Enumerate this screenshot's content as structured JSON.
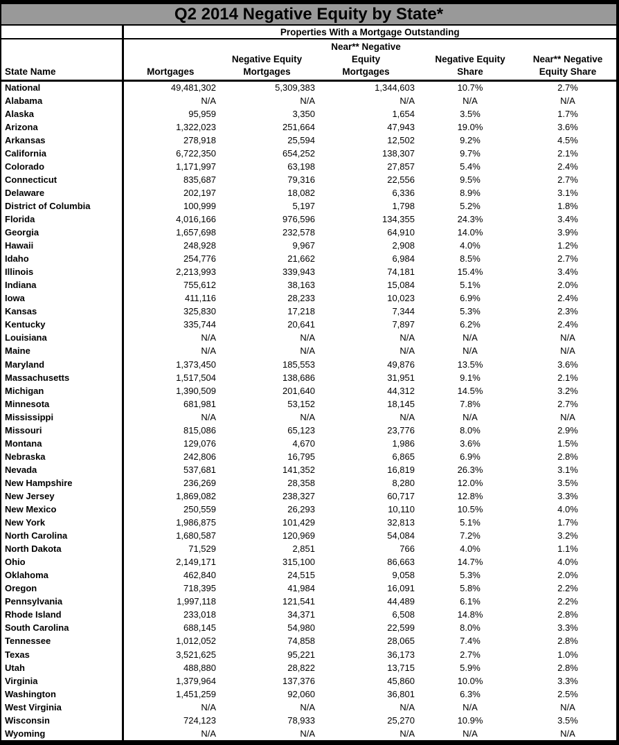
{
  "title": "Q2 2014 Negative Equity by State*",
  "colors": {
    "title_bar_bg": "#999999",
    "border": "#000000",
    "text": "#000000"
  },
  "table": {
    "group_header": "Properties With a Mortgage Outstanding",
    "columns": {
      "state": "State Name",
      "mortgages": "Mortgages",
      "neg_equity_l1": "Negative Equity",
      "neg_equity_l2": "Mortgages",
      "near_neg_l1": "Near** Negative",
      "near_neg_l2": "Equity",
      "near_neg_l3": "Mortgages",
      "neg_share_l1": "Negative Equity",
      "neg_share_l2": "Share",
      "near_share_l1": "Near** Negative",
      "near_share_l2": "Equity Share"
    },
    "rows": [
      [
        "National",
        "49,481,302",
        "5,309,383",
        "1,344,603",
        "10.7%",
        "2.7%"
      ],
      [
        "Alabama",
        "N/A",
        "N/A",
        "N/A",
        "N/A",
        "N/A"
      ],
      [
        "Alaska",
        "95,959",
        "3,350",
        "1,654",
        "3.5%",
        "1.7%"
      ],
      [
        "Arizona",
        "1,322,023",
        "251,664",
        "47,943",
        "19.0%",
        "3.6%"
      ],
      [
        "Arkansas",
        "278,918",
        "25,594",
        "12,502",
        "9.2%",
        "4.5%"
      ],
      [
        "California",
        "6,722,350",
        "654,252",
        "138,307",
        "9.7%",
        "2.1%"
      ],
      [
        "Colorado",
        "1,171,997",
        "63,198",
        "27,857",
        "5.4%",
        "2.4%"
      ],
      [
        "Connecticut",
        "835,687",
        "79,316",
        "22,556",
        "9.5%",
        "2.7%"
      ],
      [
        "Delaware",
        "202,197",
        "18,082",
        "6,336",
        "8.9%",
        "3.1%"
      ],
      [
        "District of Columbia",
        "100,999",
        "5,197",
        "1,798",
        "5.2%",
        "1.8%"
      ],
      [
        "Florida",
        "4,016,166",
        "976,596",
        "134,355",
        "24.3%",
        "3.4%"
      ],
      [
        "Georgia",
        "1,657,698",
        "232,578",
        "64,910",
        "14.0%",
        "3.9%"
      ],
      [
        "Hawaii",
        "248,928",
        "9,967",
        "2,908",
        "4.0%",
        "1.2%"
      ],
      [
        "Idaho",
        "254,776",
        "21,662",
        "6,984",
        "8.5%",
        "2.7%"
      ],
      [
        "Illinois",
        "2,213,993",
        "339,943",
        "74,181",
        "15.4%",
        "3.4%"
      ],
      [
        "Indiana",
        "755,612",
        "38,163",
        "15,084",
        "5.1%",
        "2.0%"
      ],
      [
        "Iowa",
        "411,116",
        "28,233",
        "10,023",
        "6.9%",
        "2.4%"
      ],
      [
        "Kansas",
        "325,830",
        "17,218",
        "7,344",
        "5.3%",
        "2.3%"
      ],
      [
        "Kentucky",
        "335,744",
        "20,641",
        "7,897",
        "6.2%",
        "2.4%"
      ],
      [
        "Louisiana",
        "N/A",
        "N/A",
        "N/A",
        "N/A",
        "N/A"
      ],
      [
        "Maine",
        "N/A",
        "N/A",
        "N/A",
        "N/A",
        "N/A"
      ],
      [
        "Maryland",
        "1,373,450",
        "185,553",
        "49,876",
        "13.5%",
        "3.6%"
      ],
      [
        "Massachusetts",
        "1,517,504",
        "138,686",
        "31,951",
        "9.1%",
        "2.1%"
      ],
      [
        "Michigan",
        "1,390,509",
        "201,640",
        "44,312",
        "14.5%",
        "3.2%"
      ],
      [
        "Minnesota",
        "681,981",
        "53,152",
        "18,145",
        "7.8%",
        "2.7%"
      ],
      [
        "Mississippi",
        "N/A",
        "N/A",
        "N/A",
        "N/A",
        "N/A"
      ],
      [
        "Missouri",
        "815,086",
        "65,123",
        "23,776",
        "8.0%",
        "2.9%"
      ],
      [
        "Montana",
        "129,076",
        "4,670",
        "1,986",
        "3.6%",
        "1.5%"
      ],
      [
        "Nebraska",
        "242,806",
        "16,795",
        "6,865",
        "6.9%",
        "2.8%"
      ],
      [
        "Nevada",
        "537,681",
        "141,352",
        "16,819",
        "26.3%",
        "3.1%"
      ],
      [
        "New Hampshire",
        "236,269",
        "28,358",
        "8,280",
        "12.0%",
        "3.5%"
      ],
      [
        "New Jersey",
        "1,869,082",
        "238,327",
        "60,717",
        "12.8%",
        "3.3%"
      ],
      [
        "New Mexico",
        "250,559",
        "26,293",
        "10,110",
        "10.5%",
        "4.0%"
      ],
      [
        "New York",
        "1,986,875",
        "101,429",
        "32,813",
        "5.1%",
        "1.7%"
      ],
      [
        "North Carolina",
        "1,680,587",
        "120,969",
        "54,084",
        "7.2%",
        "3.2%"
      ],
      [
        "North Dakota",
        "71,529",
        "2,851",
        "766",
        "4.0%",
        "1.1%"
      ],
      [
        "Ohio",
        "2,149,171",
        "315,100",
        "86,663",
        "14.7%",
        "4.0%"
      ],
      [
        "Oklahoma",
        "462,840",
        "24,515",
        "9,058",
        "5.3%",
        "2.0%"
      ],
      [
        "Oregon",
        "718,395",
        "41,984",
        "16,091",
        "5.8%",
        "2.2%"
      ],
      [
        "Pennsylvania",
        "1,997,118",
        "121,541",
        "44,489",
        "6.1%",
        "2.2%"
      ],
      [
        "Rhode Island",
        "233,018",
        "34,371",
        "6,508",
        "14.8%",
        "2.8%"
      ],
      [
        "South Carolina",
        "688,145",
        "54,980",
        "22,599",
        "8.0%",
        "3.3%"
      ],
      [
        "Tennessee",
        "1,012,052",
        "74,858",
        "28,065",
        "7.4%",
        "2.8%"
      ],
      [
        "Texas",
        "3,521,625",
        "95,221",
        "36,173",
        "2.7%",
        "1.0%"
      ],
      [
        "Utah",
        "488,880",
        "28,822",
        "13,715",
        "5.9%",
        "2.8%"
      ],
      [
        "Virginia",
        "1,379,964",
        "137,376",
        "45,860",
        "10.0%",
        "3.3%"
      ],
      [
        "Washington",
        "1,451,259",
        "92,060",
        "36,801",
        "6.3%",
        "2.5%"
      ],
      [
        "West Virginia",
        "N/A",
        "N/A",
        "N/A",
        "N/A",
        "N/A"
      ],
      [
        "Wisconsin",
        "724,123",
        "78,933",
        "25,270",
        "10.9%",
        "3.5%"
      ],
      [
        "Wyoming",
        "N/A",
        "N/A",
        "N/A",
        "N/A",
        "N/A"
      ]
    ]
  }
}
